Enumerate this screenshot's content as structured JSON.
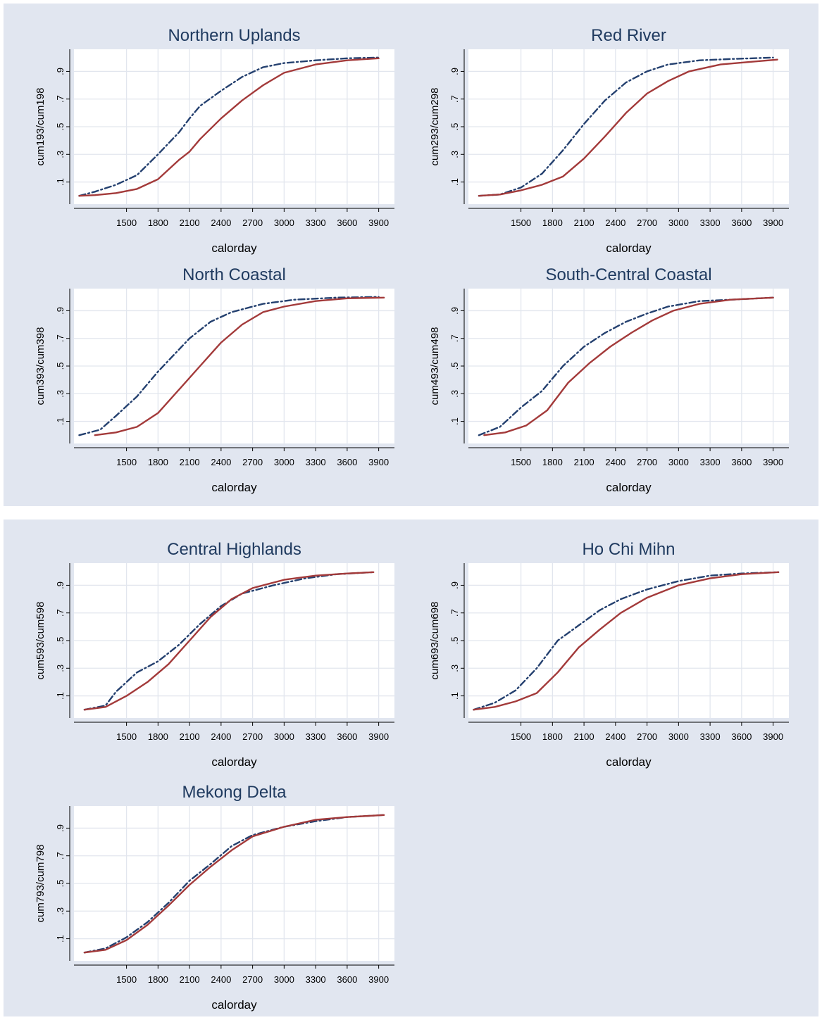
{
  "panels": [
    {},
    {}
  ],
  "chart_data": [
    {
      "type": "line",
      "title": "Northern Uplands",
      "xlabel": "calorday",
      "ylabel": "cum193/cum198",
      "xticks": [
        "1500",
        "1800",
        "2100",
        "2400",
        "2700",
        "3000",
        "3300",
        "3600",
        "3900"
      ],
      "yticks": [
        ".1",
        ".3",
        ".5",
        ".7",
        ".9"
      ],
      "xlim": [
        1000,
        4050
      ],
      "ylim": [
        -0.06,
        1.06
      ],
      "grid": true,
      "series": [
        {
          "color": "#24406f",
          "dash": "dashdot",
          "points": [
            [
              1050,
              0.0
            ],
            [
              1200,
              0.03
            ],
            [
              1400,
              0.08
            ],
            [
              1600,
              0.15
            ],
            [
              1800,
              0.3
            ],
            [
              2000,
              0.46
            ],
            [
              2100,
              0.56
            ],
            [
              2200,
              0.65
            ],
            [
              2400,
              0.76
            ],
            [
              2600,
              0.86
            ],
            [
              2800,
              0.93
            ],
            [
              3000,
              0.96
            ],
            [
              3300,
              0.98
            ],
            [
              3600,
              0.995
            ],
            [
              3900,
              1.0
            ]
          ]
        },
        {
          "color": "#a33a3a",
          "dash": "solid",
          "points": [
            [
              1050,
              0.0
            ],
            [
              1200,
              0.005
            ],
            [
              1400,
              0.02
            ],
            [
              1600,
              0.05
            ],
            [
              1800,
              0.12
            ],
            [
              2000,
              0.26
            ],
            [
              2100,
              0.32
            ],
            [
              2200,
              0.41
            ],
            [
              2400,
              0.56
            ],
            [
              2600,
              0.69
            ],
            [
              2800,
              0.8
            ],
            [
              3000,
              0.89
            ],
            [
              3300,
              0.95
            ],
            [
              3600,
              0.98
            ],
            [
              3900,
              0.995
            ]
          ]
        }
      ]
    },
    {
      "type": "line",
      "title": "Red River",
      "xlabel": "calorday",
      "ylabel": "cum293/cum298",
      "xticks": [
        "1500",
        "1800",
        "2100",
        "2400",
        "2700",
        "3000",
        "3300",
        "3600",
        "3900"
      ],
      "yticks": [
        ".1",
        ".3",
        ".5",
        ".7",
        ".9"
      ],
      "xlim": [
        1000,
        4050
      ],
      "ylim": [
        -0.06,
        1.06
      ],
      "grid": true,
      "series": [
        {
          "color": "#24406f",
          "dash": "dashdot",
          "points": [
            [
              1100,
              0.0
            ],
            [
              1300,
              0.01
            ],
            [
              1500,
              0.06
            ],
            [
              1700,
              0.16
            ],
            [
              1900,
              0.33
            ],
            [
              2100,
              0.52
            ],
            [
              2300,
              0.69
            ],
            [
              2500,
              0.82
            ],
            [
              2700,
              0.9
            ],
            [
              2900,
              0.95
            ],
            [
              3200,
              0.98
            ],
            [
              3500,
              0.99
            ],
            [
              3900,
              1.0
            ]
          ]
        },
        {
          "color": "#a33a3a",
          "dash": "solid",
          "points": [
            [
              1100,
              0.0
            ],
            [
              1300,
              0.01
            ],
            [
              1500,
              0.04
            ],
            [
              1700,
              0.08
            ],
            [
              1900,
              0.14
            ],
            [
              2100,
              0.27
            ],
            [
              2300,
              0.43
            ],
            [
              2500,
              0.6
            ],
            [
              2700,
              0.74
            ],
            [
              2900,
              0.83
            ],
            [
              3100,
              0.9
            ],
            [
              3400,
              0.95
            ],
            [
              3700,
              0.97
            ],
            [
              3940,
              0.985
            ]
          ]
        }
      ]
    },
    {
      "type": "line",
      "title": "North Coastal",
      "xlabel": "calorday",
      "ylabel": "cum393/cum398",
      "xticks": [
        "1500",
        "1800",
        "2100",
        "2400",
        "2700",
        "3000",
        "3300",
        "3600",
        "3900"
      ],
      "yticks": [
        ".1",
        ".3",
        ".5",
        ".7",
        ".9"
      ],
      "xlim": [
        1000,
        4050
      ],
      "ylim": [
        -0.06,
        1.06
      ],
      "grid": true,
      "series": [
        {
          "color": "#24406f",
          "dash": "dashdot",
          "points": [
            [
              1050,
              0.0
            ],
            [
              1250,
              0.04
            ],
            [
              1400,
              0.14
            ],
            [
              1600,
              0.28
            ],
            [
              1800,
              0.46
            ],
            [
              2000,
              0.62
            ],
            [
              2100,
              0.7
            ],
            [
              2300,
              0.82
            ],
            [
              2500,
              0.89
            ],
            [
              2800,
              0.95
            ],
            [
              3100,
              0.98
            ],
            [
              3500,
              0.995
            ],
            [
              3900,
              1.0
            ]
          ]
        },
        {
          "color": "#a33a3a",
          "dash": "solid",
          "points": [
            [
              1200,
              0.0
            ],
            [
              1400,
              0.02
            ],
            [
              1600,
              0.06
            ],
            [
              1800,
              0.16
            ],
            [
              2000,
              0.33
            ],
            [
              2200,
              0.5
            ],
            [
              2400,
              0.67
            ],
            [
              2600,
              0.8
            ],
            [
              2800,
              0.89
            ],
            [
              3000,
              0.93
            ],
            [
              3300,
              0.97
            ],
            [
              3600,
              0.99
            ],
            [
              3950,
              0.995
            ]
          ]
        }
      ]
    },
    {
      "type": "line",
      "title": "South-Central Coastal",
      "xlabel": "calorday",
      "ylabel": "cum493/cum498",
      "xticks": [
        "1500",
        "1800",
        "2100",
        "2400",
        "2700",
        "3000",
        "3300",
        "3600",
        "3900"
      ],
      "yticks": [
        ".1",
        ".3",
        ".5",
        ".7",
        ".9"
      ],
      "xlim": [
        1000,
        4050
      ],
      "ylim": [
        -0.06,
        1.06
      ],
      "grid": true,
      "series": [
        {
          "color": "#24406f",
          "dash": "dashdot",
          "points": [
            [
              1100,
              0.0
            ],
            [
              1300,
              0.06
            ],
            [
              1500,
              0.2
            ],
            [
              1700,
              0.32
            ],
            [
              1900,
              0.5
            ],
            [
              2100,
              0.64
            ],
            [
              2300,
              0.74
            ],
            [
              2500,
              0.82
            ],
            [
              2700,
              0.88
            ],
            [
              2900,
              0.93
            ],
            [
              3200,
              0.97
            ],
            [
              3500,
              0.98
            ],
            [
              3900,
              0.995
            ]
          ]
        },
        {
          "color": "#a33a3a",
          "dash": "solid",
          "points": [
            [
              1150,
              0.0
            ],
            [
              1350,
              0.02
            ],
            [
              1550,
              0.07
            ],
            [
              1750,
              0.18
            ],
            [
              1950,
              0.38
            ],
            [
              2150,
              0.52
            ],
            [
              2350,
              0.64
            ],
            [
              2550,
              0.74
            ],
            [
              2750,
              0.83
            ],
            [
              2950,
              0.9
            ],
            [
              3200,
              0.95
            ],
            [
              3500,
              0.98
            ],
            [
              3900,
              0.995
            ]
          ]
        }
      ]
    },
    {
      "type": "line",
      "title": "Central Highlands",
      "xlabel": "calorday",
      "ylabel": "cum593/cum598",
      "xticks": [
        "1500",
        "1800",
        "2100",
        "2400",
        "2700",
        "3000",
        "3300",
        "3600",
        "3900"
      ],
      "yticks": [
        ".1",
        ".3",
        ".5",
        ".7",
        ".9"
      ],
      "xlim": [
        1000,
        4050
      ],
      "ylim": [
        -0.06,
        1.06
      ],
      "grid": true,
      "series": [
        {
          "color": "#24406f",
          "dash": "dashdot",
          "points": [
            [
              1100,
              0.0
            ],
            [
              1300,
              0.03
            ],
            [
              1400,
              0.13
            ],
            [
              1600,
              0.27
            ],
            [
              1800,
              0.35
            ],
            [
              2000,
              0.47
            ],
            [
              2200,
              0.62
            ],
            [
              2400,
              0.75
            ],
            [
              2600,
              0.84
            ],
            [
              2900,
              0.9
            ],
            [
              3200,
              0.95
            ],
            [
              3500,
              0.98
            ],
            [
              3850,
              0.995
            ]
          ]
        },
        {
          "color": "#a33a3a",
          "dash": "solid",
          "points": [
            [
              1100,
              0.0
            ],
            [
              1300,
              0.02
            ],
            [
              1500,
              0.1
            ],
            [
              1700,
              0.2
            ],
            [
              1900,
              0.33
            ],
            [
              2100,
              0.5
            ],
            [
              2300,
              0.67
            ],
            [
              2500,
              0.8
            ],
            [
              2700,
              0.88
            ],
            [
              3000,
              0.94
            ],
            [
              3300,
              0.97
            ],
            [
              3600,
              0.985
            ],
            [
              3850,
              0.995
            ]
          ]
        }
      ]
    },
    {
      "type": "line",
      "title": "Ho Chi Mihn",
      "xlabel": "calorday",
      "ylabel": "cum693/cum698",
      "xticks": [
        "1500",
        "1800",
        "2100",
        "2400",
        "2700",
        "3000",
        "3300",
        "3600",
        "3900"
      ],
      "yticks": [
        ".1",
        ".3",
        ".5",
        ".7",
        ".9"
      ],
      "xlim": [
        1000,
        4050
      ],
      "ylim": [
        -0.06,
        1.06
      ],
      "grid": true,
      "series": [
        {
          "color": "#24406f",
          "dash": "dashdot",
          "points": [
            [
              1050,
              0.0
            ],
            [
              1250,
              0.05
            ],
            [
              1450,
              0.14
            ],
            [
              1650,
              0.3
            ],
            [
              1850,
              0.5
            ],
            [
              2050,
              0.61
            ],
            [
              2250,
              0.72
            ],
            [
              2450,
              0.8
            ],
            [
              2700,
              0.87
            ],
            [
              3000,
              0.93
            ],
            [
              3300,
              0.97
            ],
            [
              3600,
              0.985
            ],
            [
              3950,
              0.995
            ]
          ]
        },
        {
          "color": "#a33a3a",
          "dash": "solid",
          "points": [
            [
              1050,
              0.0
            ],
            [
              1250,
              0.02
            ],
            [
              1450,
              0.06
            ],
            [
              1650,
              0.12
            ],
            [
              1850,
              0.27
            ],
            [
              2050,
              0.45
            ],
            [
              2250,
              0.58
            ],
            [
              2450,
              0.7
            ],
            [
              2700,
              0.81
            ],
            [
              3000,
              0.9
            ],
            [
              3300,
              0.95
            ],
            [
              3600,
              0.98
            ],
            [
              3950,
              0.995
            ]
          ]
        }
      ]
    },
    {
      "type": "line",
      "title": "Mekong Delta",
      "xlabel": "calorday",
      "ylabel": "cum793/cum798",
      "xticks": [
        "1500",
        "1800",
        "2100",
        "2400",
        "2700",
        "3000",
        "3300",
        "3600",
        "3900"
      ],
      "yticks": [
        ".1",
        ".3",
        ".5",
        ".7",
        ".9"
      ],
      "xlim": [
        1000,
        4050
      ],
      "ylim": [
        -0.06,
        1.06
      ],
      "grid": true,
      "series": [
        {
          "color": "#24406f",
          "dash": "dashdot",
          "points": [
            [
              1100,
              0.0
            ],
            [
              1300,
              0.03
            ],
            [
              1500,
              0.11
            ],
            [
              1700,
              0.22
            ],
            [
              1900,
              0.36
            ],
            [
              2100,
              0.52
            ],
            [
              2300,
              0.64
            ],
            [
              2500,
              0.77
            ],
            [
              2700,
              0.85
            ],
            [
              3000,
              0.91
            ],
            [
              3300,
              0.95
            ],
            [
              3600,
              0.98
            ],
            [
              3950,
              0.995
            ]
          ]
        },
        {
          "color": "#a33a3a",
          "dash": "solid",
          "points": [
            [
              1100,
              0.0
            ],
            [
              1300,
              0.02
            ],
            [
              1500,
              0.09
            ],
            [
              1700,
              0.2
            ],
            [
              1900,
              0.34
            ],
            [
              2100,
              0.49
            ],
            [
              2300,
              0.62
            ],
            [
              2500,
              0.74
            ],
            [
              2700,
              0.84
            ],
            [
              3000,
              0.91
            ],
            [
              3300,
              0.96
            ],
            [
              3600,
              0.98
            ],
            [
              3950,
              0.995
            ]
          ]
        }
      ]
    }
  ]
}
